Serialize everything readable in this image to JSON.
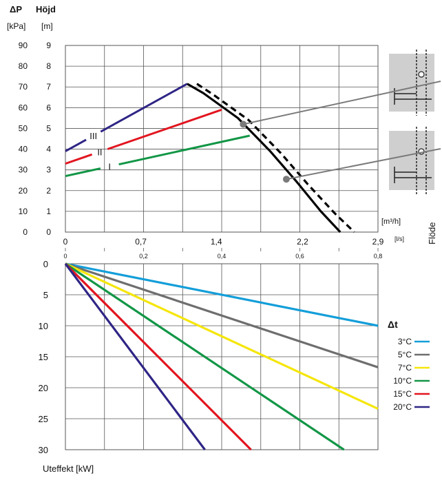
{
  "colors": {
    "grid": "#555555",
    "curve": "#000000",
    "pointer": "#7a7a7a",
    "schematic_bg": "#cfcfcf",
    "series": {
      "III": "#2e2585",
      "II": "#e2151f",
      "I": "#129646",
      "dt3": "#139ed9",
      "dt5": "#6e6e6e",
      "dt7": "#f5e60a",
      "dt10": "#129646",
      "dt15": "#e2151f",
      "dt20": "#2e2585"
    }
  },
  "chart_data": [
    {
      "type": "line",
      "panel": "pump-curve",
      "labels": {
        "dp_head": "ΔP",
        "dp_unit": "[kPa]",
        "height_head": "Höjd",
        "height_unit": "[m]",
        "flow_unit_m3h": "[m³/h]",
        "flow_unit_ls": "[l/s]",
        "flow_axis_title": "Flöde"
      },
      "y_kpa_ticks": [
        "90",
        "80",
        "70",
        "60",
        "50",
        "40",
        "30",
        "20",
        "10",
        "0"
      ],
      "y_m_ticks": [
        "9",
        "8",
        "7",
        "6",
        "5",
        "4",
        "3",
        "2",
        "1",
        "0"
      ],
      "x_m3h_ticks": [
        {
          "v": 0,
          "label": "0"
        },
        {
          "v": 0.7,
          "label": "0,7"
        },
        {
          "v": 1.4,
          "label": "1,4"
        },
        {
          "v": 2.2,
          "label": "2,2"
        },
        {
          "v": 2.9,
          "label": "2,9"
        }
      ],
      "x_ls_ticks": [
        {
          "v": 0,
          "label": "0"
        },
        {
          "v": 0.2,
          "label": "0,2"
        },
        {
          "v": 0.4,
          "label": "0,4"
        },
        {
          "v": 0.6,
          "label": "0,6"
        },
        {
          "v": 0.8,
          "label": "0,8"
        }
      ],
      "xlim_m3h": [
        0,
        2.9
      ],
      "ylim_m": [
        0,
        9
      ],
      "series": [
        {
          "name": "III",
          "points": [
            [
              0,
              3.9
            ],
            [
              1.13,
              7.15
            ]
          ]
        },
        {
          "name": "II",
          "points": [
            [
              0,
              3.3
            ],
            [
              1.45,
              5.9
            ]
          ]
        },
        {
          "name": "I",
          "points": [
            [
              0,
              2.7
            ],
            [
              1.71,
              4.65
            ]
          ]
        }
      ],
      "system_curves": [
        {
          "style": "solid",
          "points": [
            [
              1.13,
              7.15
            ],
            [
              1.28,
              6.7
            ],
            [
              1.6,
              5.5
            ],
            [
              1.9,
              3.9
            ],
            [
              2.15,
              2.4
            ],
            [
              2.37,
              1.0
            ],
            [
              2.55,
              0
            ]
          ]
        },
        {
          "style": "dashed",
          "points": [
            [
              1.22,
              7.15
            ],
            [
              1.38,
              6.6
            ],
            [
              1.7,
              5.4
            ],
            [
              2.0,
              3.8
            ],
            [
              2.25,
              2.3
            ],
            [
              2.5,
              0.9
            ],
            [
              2.68,
              0
            ]
          ]
        }
      ],
      "markers": [
        {
          "x": 1.65,
          "y": 5.2,
          "pointer_to": "schematic-top"
        },
        {
          "x": 2.05,
          "y": 2.55,
          "pointer_to": "schematic-bottom"
        }
      ]
    },
    {
      "type": "line",
      "panel": "power-curve",
      "xlabel": "Uteffekt [kW]",
      "legend_title": "Δt",
      "legend_position": "right",
      "ylim": [
        0,
        30
      ],
      "y_ticks": [
        "0",
        "5",
        "10",
        "15",
        "20",
        "25",
        "30"
      ],
      "series": [
        {
          "name": "3°C",
          "color_key": "dt3",
          "points": [
            [
              0,
              0
            ],
            [
              0.8,
              10
            ]
          ]
        },
        {
          "name": "5°C",
          "color_key": "dt5",
          "points": [
            [
              0,
              0
            ],
            [
              0.8,
              16.7
            ]
          ]
        },
        {
          "name": "7°C",
          "color_key": "dt7",
          "points": [
            [
              0,
              0
            ],
            [
              0.8,
              23.4
            ]
          ]
        },
        {
          "name": "10°C",
          "color_key": "dt10",
          "points": [
            [
              0,
              0
            ],
            [
              0.713,
              30
            ]
          ]
        },
        {
          "name": "15°C",
          "color_key": "dt15",
          "points": [
            [
              0,
              0
            ],
            [
              0.475,
              30
            ]
          ]
        },
        {
          "name": "20°C",
          "color_key": "dt20",
          "points": [
            [
              0,
              0
            ],
            [
              0.357,
              30
            ]
          ]
        }
      ]
    }
  ]
}
